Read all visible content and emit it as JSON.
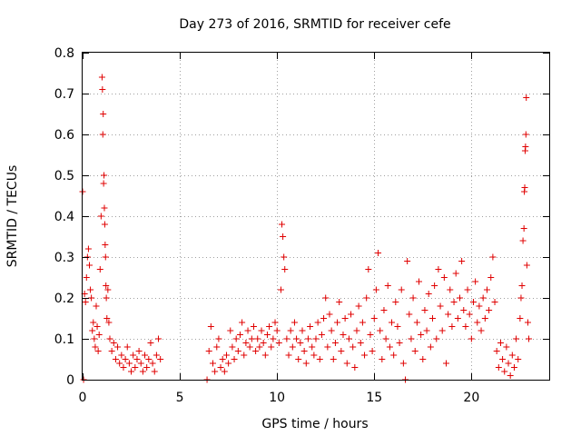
{
  "chart_data": {
    "type": "scatter",
    "title": "Day 273 of 2016, SRMTID for receiver cefe",
    "xlabel": "GPS time / hours",
    "ylabel": "SRMTID / TECUs",
    "xlim": [
      0,
      24
    ],
    "ylim": [
      0,
      0.8
    ],
    "xticks": [
      0,
      5,
      10,
      15,
      20
    ],
    "xtick_labels": [
      "0",
      "5",
      "10",
      "15",
      "20"
    ],
    "yticks": [
      0,
      0.1,
      0.2,
      0.3,
      0.4,
      0.5,
      0.6,
      0.7,
      0.8
    ],
    "ytick_labels": [
      "0",
      "0.1",
      "0.2",
      "0.3",
      "0.4",
      "0.5",
      "0.6",
      "0.7",
      "0.8"
    ],
    "grid": true,
    "marker": "+",
    "color": "#e00000",
    "series": [
      {
        "name": "SRMTID",
        "points": [
          [
            0.0,
            0.46
          ],
          [
            0.05,
            0.0
          ],
          [
            0.1,
            0.21
          ],
          [
            0.15,
            0.19
          ],
          [
            0.2,
            0.25
          ],
          [
            0.25,
            0.3
          ],
          [
            0.3,
            0.32
          ],
          [
            0.35,
            0.28
          ],
          [
            0.4,
            0.22
          ],
          [
            0.45,
            0.2
          ],
          [
            0.5,
            0.12
          ],
          [
            0.55,
            0.14
          ],
          [
            0.6,
            0.1
          ],
          [
            0.65,
            0.08
          ],
          [
            0.7,
            0.18
          ],
          [
            0.75,
            0.13
          ],
          [
            0.8,
            0.07
          ],
          [
            0.85,
            0.11
          ],
          [
            0.9,
            0.27
          ],
          [
            0.95,
            0.4
          ],
          [
            1.0,
            0.74
          ],
          [
            1.02,
            0.71
          ],
          [
            1.04,
            0.6
          ],
          [
            1.06,
            0.65
          ],
          [
            1.08,
            0.48
          ],
          [
            1.1,
            0.5
          ],
          [
            1.12,
            0.42
          ],
          [
            1.14,
            0.38
          ],
          [
            1.16,
            0.33
          ],
          [
            1.18,
            0.3
          ],
          [
            1.2,
            0.23
          ],
          [
            1.22,
            0.2
          ],
          [
            1.25,
            0.15
          ],
          [
            1.3,
            0.22
          ],
          [
            1.35,
            0.14
          ],
          [
            1.4,
            0.1
          ],
          [
            1.5,
            0.07
          ],
          [
            1.6,
            0.09
          ],
          [
            1.7,
            0.05
          ],
          [
            1.8,
            0.08
          ],
          [
            1.9,
            0.04
          ],
          [
            2.0,
            0.06
          ],
          [
            2.1,
            0.03
          ],
          [
            2.2,
            0.05
          ],
          [
            2.3,
            0.08
          ],
          [
            2.4,
            0.04
          ],
          [
            2.5,
            0.02
          ],
          [
            2.6,
            0.06
          ],
          [
            2.7,
            0.03
          ],
          [
            2.8,
            0.05
          ],
          [
            2.9,
            0.07
          ],
          [
            3.0,
            0.04
          ],
          [
            3.1,
            0.02
          ],
          [
            3.2,
            0.06
          ],
          [
            3.3,
            0.03
          ],
          [
            3.4,
            0.05
          ],
          [
            3.5,
            0.09
          ],
          [
            3.6,
            0.04
          ],
          [
            3.7,
            0.02
          ],
          [
            3.8,
            0.06
          ],
          [
            3.9,
            0.1
          ],
          [
            4.0,
            0.05
          ],
          [
            6.4,
            0.0
          ],
          [
            6.5,
            0.07
          ],
          [
            6.6,
            0.13
          ],
          [
            6.7,
            0.04
          ],
          [
            6.8,
            0.02
          ],
          [
            6.9,
            0.08
          ],
          [
            7.0,
            0.1
          ],
          [
            7.1,
            0.03
          ],
          [
            7.2,
            0.05
          ],
          [
            7.3,
            0.02
          ],
          [
            7.4,
            0.06
          ],
          [
            7.5,
            0.04
          ],
          [
            7.6,
            0.12
          ],
          [
            7.7,
            0.08
          ],
          [
            7.8,
            0.05
          ],
          [
            7.9,
            0.1
          ],
          [
            8.0,
            0.07
          ],
          [
            8.1,
            0.11
          ],
          [
            8.2,
            0.14
          ],
          [
            8.3,
            0.06
          ],
          [
            8.4,
            0.09
          ],
          [
            8.5,
            0.12
          ],
          [
            8.6,
            0.08
          ],
          [
            8.7,
            0.1
          ],
          [
            8.8,
            0.13
          ],
          [
            8.9,
            0.07
          ],
          [
            9.0,
            0.1
          ],
          [
            9.1,
            0.08
          ],
          [
            9.2,
            0.12
          ],
          [
            9.3,
            0.09
          ],
          [
            9.4,
            0.06
          ],
          [
            9.5,
            0.11
          ],
          [
            9.6,
            0.13
          ],
          [
            9.7,
            0.08
          ],
          [
            9.8,
            0.1
          ],
          [
            9.9,
            0.14
          ],
          [
            10.0,
            0.12
          ],
          [
            10.1,
            0.09
          ],
          [
            10.2,
            0.22
          ],
          [
            10.25,
            0.38
          ],
          [
            10.3,
            0.35
          ],
          [
            10.35,
            0.3
          ],
          [
            10.4,
            0.27
          ],
          [
            10.5,
            0.1
          ],
          [
            10.6,
            0.06
          ],
          [
            10.7,
            0.12
          ],
          [
            10.8,
            0.08
          ],
          [
            10.9,
            0.14
          ],
          [
            11.0,
            0.1
          ],
          [
            11.1,
            0.05
          ],
          [
            11.2,
            0.09
          ],
          [
            11.3,
            0.12
          ],
          [
            11.4,
            0.07
          ],
          [
            11.5,
            0.04
          ],
          [
            11.6,
            0.1
          ],
          [
            11.7,
            0.13
          ],
          [
            11.8,
            0.08
          ],
          [
            11.9,
            0.06
          ],
          [
            12.0,
            0.1
          ],
          [
            12.1,
            0.14
          ],
          [
            12.2,
            0.05
          ],
          [
            12.3,
            0.11
          ],
          [
            12.4,
            0.15
          ],
          [
            12.5,
            0.2
          ],
          [
            12.6,
            0.08
          ],
          [
            12.7,
            0.16
          ],
          [
            12.8,
            0.12
          ],
          [
            12.9,
            0.05
          ],
          [
            13.0,
            0.09
          ],
          [
            13.1,
            0.14
          ],
          [
            13.2,
            0.19
          ],
          [
            13.3,
            0.07
          ],
          [
            13.4,
            0.11
          ],
          [
            13.5,
            0.15
          ],
          [
            13.6,
            0.04
          ],
          [
            13.7,
            0.1
          ],
          [
            13.8,
            0.16
          ],
          [
            13.9,
            0.08
          ],
          [
            14.0,
            0.03
          ],
          [
            14.1,
            0.12
          ],
          [
            14.2,
            0.18
          ],
          [
            14.3,
            0.09
          ],
          [
            14.4,
            0.14
          ],
          [
            14.5,
            0.06
          ],
          [
            14.6,
            0.2
          ],
          [
            14.7,
            0.27
          ],
          [
            14.8,
            0.11
          ],
          [
            14.9,
            0.07
          ],
          [
            15.0,
            0.15
          ],
          [
            15.1,
            0.22
          ],
          [
            15.2,
            0.31
          ],
          [
            15.3,
            0.12
          ],
          [
            15.4,
            0.05
          ],
          [
            15.5,
            0.17
          ],
          [
            15.6,
            0.1
          ],
          [
            15.7,
            0.23
          ],
          [
            15.8,
            0.08
          ],
          [
            15.9,
            0.14
          ],
          [
            16.0,
            0.06
          ],
          [
            16.1,
            0.19
          ],
          [
            16.2,
            0.13
          ],
          [
            16.3,
            0.09
          ],
          [
            16.4,
            0.22
          ],
          [
            16.5,
            0.04
          ],
          [
            16.6,
            0.0
          ],
          [
            16.7,
            0.29
          ],
          [
            16.8,
            0.16
          ],
          [
            16.9,
            0.1
          ],
          [
            17.0,
            0.2
          ],
          [
            17.1,
            0.07
          ],
          [
            17.2,
            0.14
          ],
          [
            17.3,
            0.24
          ],
          [
            17.4,
            0.11
          ],
          [
            17.5,
            0.05
          ],
          [
            17.6,
            0.17
          ],
          [
            17.7,
            0.12
          ],
          [
            17.8,
            0.21
          ],
          [
            17.9,
            0.08
          ],
          [
            18.0,
            0.15
          ],
          [
            18.1,
            0.23
          ],
          [
            18.2,
            0.1
          ],
          [
            18.3,
            0.27
          ],
          [
            18.4,
            0.18
          ],
          [
            18.5,
            0.12
          ],
          [
            18.6,
            0.25
          ],
          [
            18.7,
            0.04
          ],
          [
            18.8,
            0.16
          ],
          [
            18.9,
            0.22
          ],
          [
            19.0,
            0.13
          ],
          [
            19.1,
            0.19
          ],
          [
            19.2,
            0.26
          ],
          [
            19.3,
            0.15
          ],
          [
            19.4,
            0.2
          ],
          [
            19.5,
            0.29
          ],
          [
            19.6,
            0.17
          ],
          [
            19.7,
            0.13
          ],
          [
            19.8,
            0.22
          ],
          [
            19.9,
            0.16
          ],
          [
            20.0,
            0.1
          ],
          [
            20.1,
            0.19
          ],
          [
            20.2,
            0.24
          ],
          [
            20.3,
            0.14
          ],
          [
            20.4,
            0.18
          ],
          [
            20.5,
            0.12
          ],
          [
            20.6,
            0.2
          ],
          [
            20.7,
            0.15
          ],
          [
            20.8,
            0.22
          ],
          [
            20.9,
            0.17
          ],
          [
            21.0,
            0.25
          ],
          [
            21.1,
            0.3
          ],
          [
            21.2,
            0.19
          ],
          [
            21.3,
            0.07
          ],
          [
            21.4,
            0.03
          ],
          [
            21.5,
            0.09
          ],
          [
            21.6,
            0.05
          ],
          [
            21.7,
            0.02
          ],
          [
            21.8,
            0.08
          ],
          [
            21.9,
            0.04
          ],
          [
            22.0,
            0.01
          ],
          [
            22.1,
            0.06
          ],
          [
            22.2,
            0.03
          ],
          [
            22.3,
            0.1
          ],
          [
            22.4,
            0.05
          ],
          [
            22.5,
            0.15
          ],
          [
            22.55,
            0.2
          ],
          [
            22.6,
            0.23
          ],
          [
            22.65,
            0.34
          ],
          [
            22.7,
            0.37
          ],
          [
            22.72,
            0.46
          ],
          [
            22.74,
            0.47
          ],
          [
            22.76,
            0.56
          ],
          [
            22.78,
            0.57
          ],
          [
            22.8,
            0.6
          ],
          [
            22.82,
            0.69
          ],
          [
            22.85,
            0.28
          ],
          [
            22.9,
            0.14
          ],
          [
            22.95,
            0.1
          ]
        ]
      }
    ]
  }
}
